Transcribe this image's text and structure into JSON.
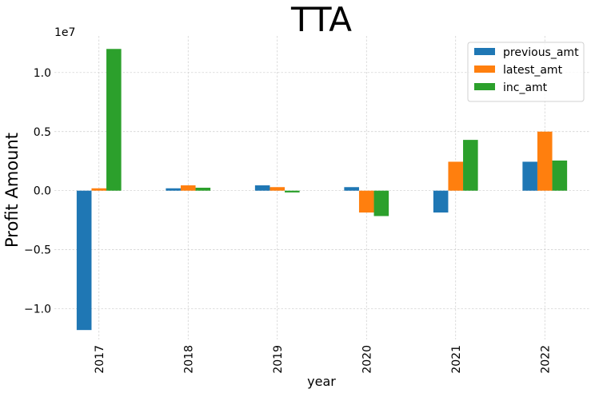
{
  "chart_data": {
    "type": "bar",
    "title": "TTA",
    "xlabel": "year",
    "ylabel": "Profit Amount",
    "y_offset_label": "1e7",
    "categories": [
      "2017",
      "2018",
      "2019",
      "2020",
      "2021",
      "2022"
    ],
    "series": [
      {
        "name": "previous_amt",
        "color": "#1f77b4",
        "values": [
          -11800000,
          200000,
          450000,
          300000,
          -1850000,
          2450000
        ]
      },
      {
        "name": "latest_amt",
        "color": "#ff7f0e",
        "values": [
          200000,
          450000,
          300000,
          -1850000,
          2450000,
          5000000
        ]
      },
      {
        "name": "inc_amt",
        "color": "#2ca02c",
        "values": [
          12000000,
          250000,
          -150000,
          -2150000,
          4300000,
          2550000
        ]
      }
    ],
    "ylim": [
      -12600000,
      13100000
    ],
    "yticks": [
      -10000000,
      -5000000,
      0,
      5000000,
      10000000
    ],
    "ytick_labels": [
      "−1.0",
      "−0.5",
      "0.0",
      "0.5",
      "1.0"
    ],
    "grid": true,
    "legend_position": "top-right"
  }
}
